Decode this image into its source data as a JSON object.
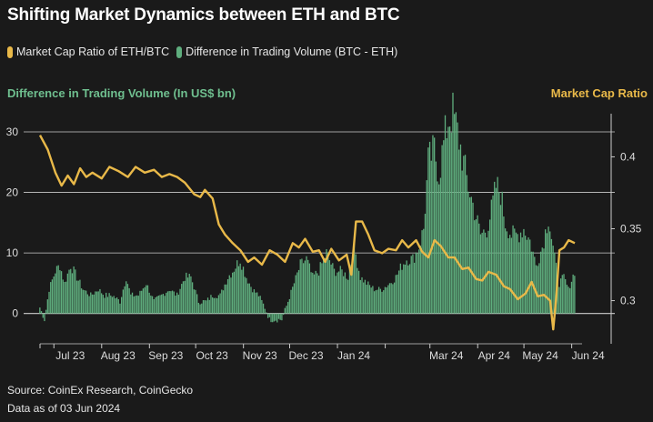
{
  "title": "Shifting Market Dynamics between ETH and BTC",
  "colors": {
    "background": "#1a1a1a",
    "ratio_line": "#e9b949",
    "volume_bars": "#5fae7e",
    "grid": "#cccccc"
  },
  "chart_data": {
    "type": "bar+line",
    "series": [
      {
        "name": "Market Cap Ratio of ETH/BTC",
        "type": "line",
        "axis": "right"
      },
      {
        "name": "Difference in Trading Volume (BTC - ETH)",
        "type": "bar",
        "axis": "left"
      }
    ],
    "ylabel_left": "Difference in Trading Volume (In US$ bn)",
    "ylabel_right": "Market Cap Ratio",
    "y_left": {
      "min": -5,
      "max": 33,
      "ticks": [
        0,
        10,
        20,
        30
      ]
    },
    "y_right": {
      "min": 0.27,
      "max": 0.43,
      "ticks": [
        0.3,
        0.35,
        0.4
      ]
    },
    "x_ticks": [
      "Jul 23",
      "Aug 23",
      "Sep 23",
      "Oct 23",
      "Nov 23",
      "Dec 23",
      "Jan 24",
      "Mar 24",
      "Apr 24",
      "May 24",
      "Jun 24"
    ],
    "x_dates": [
      "2023-07-01",
      "2023-08-01",
      "2023-09-01",
      "2023-10-01",
      "2023-11-01",
      "2023-12-01",
      "2024-01-01",
      "2024-03-01",
      "2024-04-01",
      "2024-05-01",
      "2024-06-01"
    ],
    "x_range": [
      "2023-06-22",
      "2024-06-03"
    ],
    "grid": "horizontal",
    "volume_points": [
      [
        "2023-06-22",
        1
      ],
      [
        "2023-06-25",
        -1
      ],
      [
        "2023-06-28",
        4
      ],
      [
        "2023-07-02",
        7
      ],
      [
        "2023-07-05",
        8
      ],
      [
        "2023-07-08",
        5
      ],
      [
        "2023-07-12",
        8
      ],
      [
        "2023-07-16",
        6
      ],
      [
        "2023-07-20",
        4
      ],
      [
        "2023-07-25",
        3
      ],
      [
        "2023-07-30",
        4
      ],
      [
        "2023-08-03",
        3
      ],
      [
        "2023-08-08",
        3
      ],
      [
        "2023-08-13",
        2
      ],
      [
        "2023-08-17",
        6
      ],
      [
        "2023-08-20",
        3
      ],
      [
        "2023-08-25",
        3
      ],
      [
        "2023-08-30",
        5
      ],
      [
        "2023-09-04",
        2
      ],
      [
        "2023-09-09",
        3
      ],
      [
        "2023-09-14",
        4
      ],
      [
        "2023-09-19",
        3
      ],
      [
        "2023-09-24",
        6
      ],
      [
        "2023-09-28",
        6
      ],
      [
        "2023-10-03",
        2
      ],
      [
        "2023-10-08",
        2
      ],
      [
        "2023-10-12",
        3
      ],
      [
        "2023-10-17",
        3
      ],
      [
        "2023-10-22",
        6
      ],
      [
        "2023-10-25",
        7
      ],
      [
        "2023-10-30",
        9
      ],
      [
        "2023-11-03",
        6
      ],
      [
        "2023-11-07",
        4
      ],
      [
        "2023-11-11",
        3
      ],
      [
        "2023-11-15",
        1
      ],
      [
        "2023-11-18",
        -1
      ],
      [
        "2023-11-22",
        -1
      ],
      [
        "2023-11-26",
        -1
      ],
      [
        "2023-11-30",
        2
      ],
      [
        "2023-12-04",
        5
      ],
      [
        "2023-12-08",
        8
      ],
      [
        "2023-12-12",
        9
      ],
      [
        "2023-12-16",
        6
      ],
      [
        "2023-12-20",
        7
      ],
      [
        "2023-12-25",
        10
      ],
      [
        "2023-12-30",
        7
      ],
      [
        "2024-01-04",
        7
      ],
      [
        "2024-01-08",
        6
      ],
      [
        "2024-01-12",
        11
      ],
      [
        "2024-01-16",
        6
      ],
      [
        "2024-01-20",
        5
      ],
      [
        "2024-01-25",
        4
      ],
      [
        "2024-01-30",
        4
      ],
      [
        "2024-02-04",
        5
      ],
      [
        "2024-02-08",
        6
      ],
      [
        "2024-02-12",
        8
      ],
      [
        "2024-02-15",
        9
      ],
      [
        "2024-02-19",
        9
      ],
      [
        "2024-02-23",
        11
      ],
      [
        "2024-02-26",
        14
      ],
      [
        "2024-02-29",
        25
      ],
      [
        "2024-03-04",
        27
      ],
      [
        "2024-03-07",
        23
      ],
      [
        "2024-03-10",
        28
      ],
      [
        "2024-03-13",
        32
      ],
      [
        "2024-03-16",
        33
      ],
      [
        "2024-03-19",
        30
      ],
      [
        "2024-03-22",
        26
      ],
      [
        "2024-03-26",
        21
      ],
      [
        "2024-03-30",
        17
      ],
      [
        "2024-04-03",
        13
      ],
      [
        "2024-04-07",
        14
      ],
      [
        "2024-04-10",
        17
      ],
      [
        "2024-04-13",
        21
      ],
      [
        "2024-04-16",
        20
      ],
      [
        "2024-04-19",
        15
      ],
      [
        "2024-04-23",
        13
      ],
      [
        "2024-04-27",
        13
      ],
      [
        "2024-05-01",
        14
      ],
      [
        "2024-05-05",
        12
      ],
      [
        "2024-05-09",
        8
      ],
      [
        "2024-05-13",
        11
      ],
      [
        "2024-05-17",
        16
      ],
      [
        "2024-05-21",
        9
      ],
      [
        "2024-05-24",
        5
      ],
      [
        "2024-05-27",
        6
      ],
      [
        "2024-05-30",
        4
      ],
      [
        "2024-06-03",
        7
      ]
    ],
    "ratio_points": [
      [
        "2023-06-22",
        0.415
      ],
      [
        "2023-06-27",
        0.405
      ],
      [
        "2023-07-02",
        0.389
      ],
      [
        "2023-07-06",
        0.38
      ],
      [
        "2023-07-10",
        0.387
      ],
      [
        "2023-07-14",
        0.381
      ],
      [
        "2023-07-18",
        0.392
      ],
      [
        "2023-07-22",
        0.386
      ],
      [
        "2023-07-26",
        0.389
      ],
      [
        "2023-08-01",
        0.385
      ],
      [
        "2023-08-06",
        0.393
      ],
      [
        "2023-08-12",
        0.39
      ],
      [
        "2023-08-18",
        0.386
      ],
      [
        "2023-08-23",
        0.393
      ],
      [
        "2023-08-29",
        0.389
      ],
      [
        "2023-09-04",
        0.391
      ],
      [
        "2023-09-09",
        0.386
      ],
      [
        "2023-09-14",
        0.388
      ],
      [
        "2023-09-19",
        0.386
      ],
      [
        "2023-09-24",
        0.382
      ],
      [
        "2023-09-30",
        0.374
      ],
      [
        "2023-10-04",
        0.372
      ],
      [
        "2023-10-07",
        0.377
      ],
      [
        "2023-10-12",
        0.371
      ],
      [
        "2023-10-16",
        0.353
      ],
      [
        "2023-10-20",
        0.346
      ],
      [
        "2023-10-25",
        0.34
      ],
      [
        "2023-10-30",
        0.335
      ],
      [
        "2023-11-04",
        0.327
      ],
      [
        "2023-11-08",
        0.33
      ],
      [
        "2023-11-13",
        0.325
      ],
      [
        "2023-11-18",
        0.335
      ],
      [
        "2023-11-23",
        0.332
      ],
      [
        "2023-11-28",
        0.327
      ],
      [
        "2023-12-03",
        0.34
      ],
      [
        "2023-12-07",
        0.337
      ],
      [
        "2023-12-11",
        0.343
      ],
      [
        "2023-12-16",
        0.334
      ],
      [
        "2023-12-20",
        0.335
      ],
      [
        "2023-12-24",
        0.327
      ],
      [
        "2023-12-28",
        0.336
      ],
      [
        "2024-01-02",
        0.328
      ],
      [
        "2024-01-07",
        0.332
      ],
      [
        "2024-01-10",
        0.318
      ],
      [
        "2024-01-13",
        0.355
      ],
      [
        "2024-01-17",
        0.355
      ],
      [
        "2024-01-21",
        0.346
      ],
      [
        "2024-01-25",
        0.335
      ],
      [
        "2024-01-30",
        0.333
      ],
      [
        "2024-02-03",
        0.336
      ],
      [
        "2024-02-08",
        0.335
      ],
      [
        "2024-02-12",
        0.342
      ],
      [
        "2024-02-16",
        0.337
      ],
      [
        "2024-02-21",
        0.342
      ],
      [
        "2024-02-25",
        0.334
      ],
      [
        "2024-02-29",
        0.33
      ],
      [
        "2024-03-04",
        0.342
      ],
      [
        "2024-03-08",
        0.338
      ],
      [
        "2024-03-13",
        0.33
      ],
      [
        "2024-03-17",
        0.33
      ],
      [
        "2024-03-22",
        0.322
      ],
      [
        "2024-03-26",
        0.323
      ],
      [
        "2024-03-31",
        0.315
      ],
      [
        "2024-04-04",
        0.314
      ],
      [
        "2024-04-08",
        0.32
      ],
      [
        "2024-04-13",
        0.318
      ],
      [
        "2024-04-18",
        0.31
      ],
      [
        "2024-04-22",
        0.308
      ],
      [
        "2024-04-27",
        0.301
      ],
      [
        "2024-05-02",
        0.305
      ],
      [
        "2024-05-06",
        0.313
      ],
      [
        "2024-05-10",
        0.303
      ],
      [
        "2024-05-14",
        0.304
      ],
      [
        "2024-05-18",
        0.3
      ],
      [
        "2024-05-20",
        0.28
      ],
      [
        "2024-05-22",
        0.303
      ],
      [
        "2024-05-24",
        0.335
      ],
      [
        "2024-05-27",
        0.337
      ],
      [
        "2024-05-30",
        0.342
      ],
      [
        "2024-06-03",
        0.34
      ]
    ]
  },
  "footer": {
    "source": "Source: CoinEx Research, CoinGecko",
    "date": "Data as of 03 Jun 2024"
  }
}
